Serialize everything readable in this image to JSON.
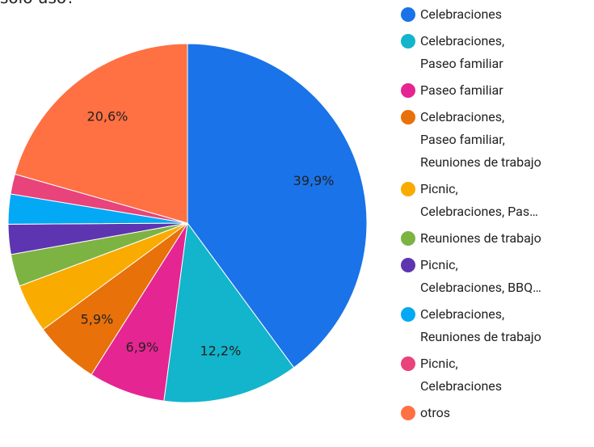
{
  "chart_data": {
    "type": "pie",
    "title": "solo uso?",
    "categories": [
      "Celebraciones",
      "Celebraciones,\nPaseo familiar",
      "Paseo familiar",
      "Celebraciones,\nPaseo familiar,\nReuniones de trabajo",
      "Picnic,\nCelebraciones, Pas…",
      "Reuniones de trabajo",
      "Picnic,\nCelebraciones, BBQ…",
      "Celebraciones,\nReuniones de trabajo",
      "Picnic,\nCelebraciones",
      "otros"
    ],
    "values": [
      39.9,
      12.2,
      6.9,
      5.9,
      4.4,
      2.9,
      2.7,
      2.7,
      1.8,
      20.6
    ],
    "value_labels": [
      "39,9%",
      "12,2%",
      "6,9%",
      "5,9%",
      null,
      null,
      null,
      null,
      null,
      "20,6%"
    ],
    "colors": [
      "#1a73e8",
      "#12b5cb",
      "#e52592",
      "#e8710a",
      "#f9ab00",
      "#7cb342",
      "#5e35b1",
      "#03a9f4",
      "#e8437b",
      "#ff7043"
    ]
  }
}
